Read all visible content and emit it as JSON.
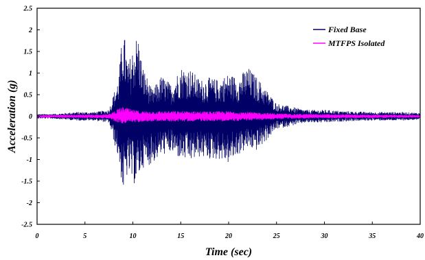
{
  "chart_data": {
    "type": "line",
    "xlabel": "Time (sec)",
    "ylabel": "Acceleration (g)",
    "xlim": [
      0,
      40
    ],
    "ylim": [
      -2.5,
      2.5
    ],
    "xticks": [
      "0",
      "5",
      "10",
      "15",
      "20",
      "25",
      "30",
      "35",
      "40"
    ],
    "yticks": [
      "2.5",
      "2",
      "1.5",
      "1",
      "0.5",
      "0",
      "-0.5",
      "-1",
      "-1.5",
      "-2",
      "-2.5"
    ],
    "grid": false,
    "legend_position": "top-right",
    "series": [
      {
        "name": "Fixed Base",
        "color": "#000066",
        "envelope": {
          "x": [
            0,
            2,
            4,
            6,
            7.5,
            8.5,
            9,
            9.5,
            10,
            10.5,
            11,
            12,
            13,
            14,
            15,
            16,
            17,
            18,
            19,
            20,
            21,
            22,
            23,
            24,
            25,
            26,
            27,
            28,
            30,
            32,
            35,
            38,
            40
          ],
          "upper": [
            0.05,
            0.06,
            0.1,
            0.1,
            0.15,
            0.9,
            2.1,
            1.2,
            1.6,
            1.95,
            1.2,
            0.6,
            0.95,
            0.75,
            1.15,
            1.1,
            0.85,
            0.9,
            0.85,
            1.0,
            0.9,
            1.15,
            0.9,
            0.6,
            0.3,
            0.25,
            0.2,
            0.15,
            0.15,
            0.12,
            0.1,
            0.1,
            0.08
          ],
          "lower": [
            -0.05,
            -0.06,
            -0.1,
            -0.1,
            -0.15,
            -1.0,
            -1.8,
            -1.3,
            -1.6,
            -1.5,
            -1.2,
            -1.1,
            -0.9,
            -0.85,
            -1.0,
            -1.05,
            -0.95,
            -1.0,
            -1.0,
            -1.1,
            -0.9,
            -0.75,
            -0.8,
            -0.55,
            -0.3,
            -0.25,
            -0.2,
            -0.15,
            -0.15,
            -0.12,
            -0.1,
            -0.1,
            -0.08
          ]
        }
      },
      {
        "name": "MTFPS Isolated",
        "color": "#ff00ff",
        "envelope": {
          "x": [
            0,
            5,
            7.5,
            8.5,
            9,
            10,
            11,
            12,
            14,
            16,
            18,
            20,
            22,
            24,
            26,
            30,
            35,
            40
          ],
          "upper": [
            0.03,
            0.04,
            0.05,
            0.18,
            0.22,
            0.15,
            0.12,
            0.12,
            0.12,
            0.12,
            0.11,
            0.12,
            0.1,
            0.08,
            0.06,
            0.05,
            0.04,
            0.03
          ],
          "lower": [
            -0.03,
            -0.04,
            -0.05,
            -0.15,
            -0.18,
            -0.15,
            -0.12,
            -0.12,
            -0.12,
            -0.12,
            -0.11,
            -0.12,
            -0.1,
            -0.08,
            -0.06,
            -0.05,
            -0.04,
            -0.03
          ]
        }
      }
    ]
  }
}
